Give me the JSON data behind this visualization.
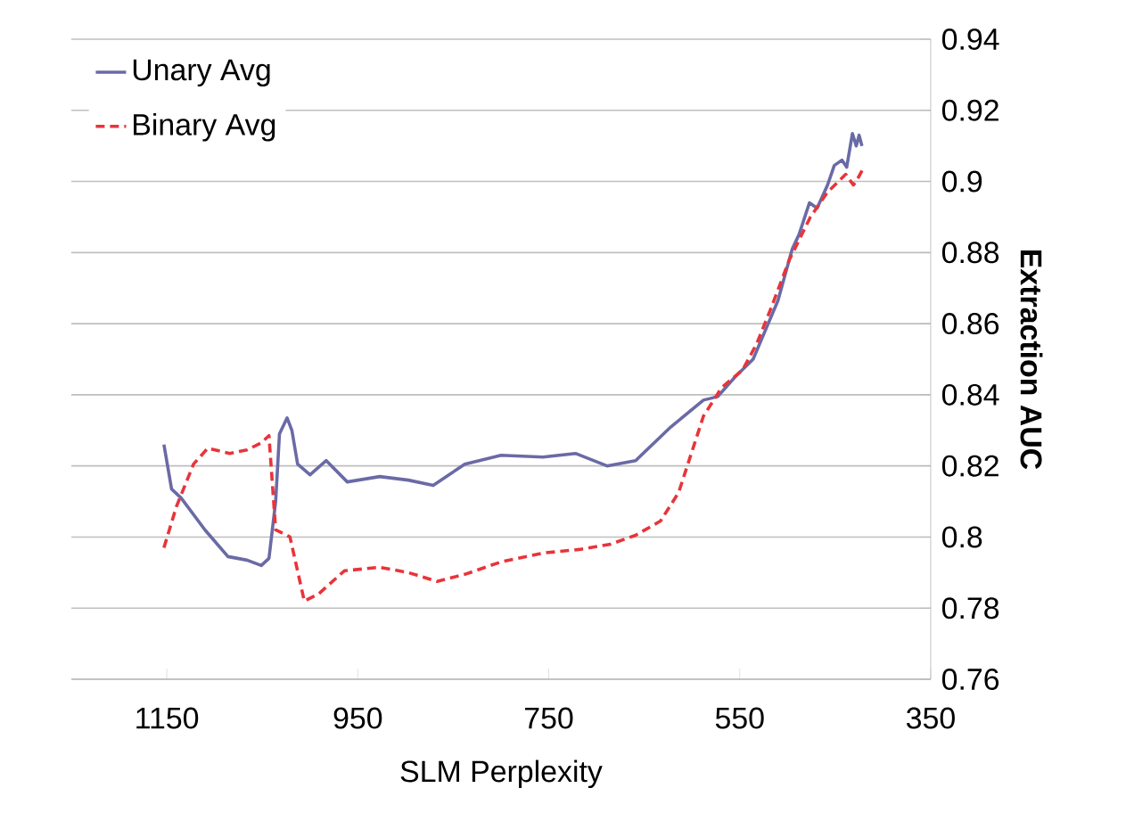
{
  "chart_data": {
    "type": "line",
    "xlabel": "SLM Perplexity",
    "ylabel": "Extraction AUC",
    "xlim": [
      1250,
      350
    ],
    "xticks": [
      1150,
      950,
      750,
      550,
      350
    ],
    "ylim": [
      0.76,
      0.94
    ],
    "yticks": [
      0.76,
      0.78,
      0.8,
      0.82,
      0.84,
      0.86,
      0.88,
      0.9,
      0.92,
      0.94
    ],
    "grid": "y",
    "legend": "top left",
    "marker": "none",
    "series": [
      {
        "name": "Unary Avg",
        "color": "#6a6aa6",
        "line_style": "solid",
        "x": [
          1153,
          1145,
          1135,
          1110,
          1086,
          1066,
          1051,
          1043,
          1036,
          1032,
          1024,
          1019,
          1013,
          1000,
          983,
          961,
          927,
          897,
          871,
          838,
          800,
          756,
          722,
          689,
          659,
          622,
          588,
          573,
          555,
          536,
          521,
          510,
          495,
          488,
          477,
          469,
          458,
          451,
          443,
          438,
          432,
          428,
          425,
          422
        ],
        "values": [
          0.826,
          0.8135,
          0.811,
          0.802,
          0.7945,
          0.7935,
          0.792,
          0.794,
          0.81,
          0.829,
          0.8335,
          0.83,
          0.8205,
          0.8175,
          0.8215,
          0.8155,
          0.817,
          0.816,
          0.8145,
          0.8205,
          0.823,
          0.8225,
          0.8235,
          0.82,
          0.8215,
          0.831,
          0.8385,
          0.8395,
          0.845,
          0.85,
          0.8595,
          0.8665,
          0.881,
          0.885,
          0.894,
          0.8925,
          0.899,
          0.9045,
          0.906,
          0.904,
          0.9135,
          0.91,
          0.913,
          0.91
        ]
      },
      {
        "name": "Binary Avg",
        "color": "#e8343a",
        "line_style": "dashed",
        "x": [
          1153,
          1140,
          1122,
          1107,
          1084,
          1066,
          1051,
          1043,
          1036,
          1028,
          1021,
          1006,
          991,
          964,
          927,
          897,
          867,
          838,
          800,
          756,
          718,
          685,
          659,
          633,
          614,
          588,
          569,
          547,
          532,
          517,
          498,
          476,
          458,
          439,
          431,
          428,
          420
        ],
        "values": [
          0.797,
          0.8085,
          0.8205,
          0.825,
          0.8235,
          0.8245,
          0.8265,
          0.8285,
          0.802,
          0.801,
          0.8,
          0.782,
          0.784,
          0.7905,
          0.7915,
          0.79,
          0.7875,
          0.7895,
          0.793,
          0.7955,
          0.7965,
          0.798,
          0.8005,
          0.8045,
          0.8125,
          0.834,
          0.842,
          0.847,
          0.8545,
          0.8645,
          0.878,
          0.89,
          0.897,
          0.902,
          0.899,
          0.9,
          0.904
        ]
      }
    ]
  }
}
